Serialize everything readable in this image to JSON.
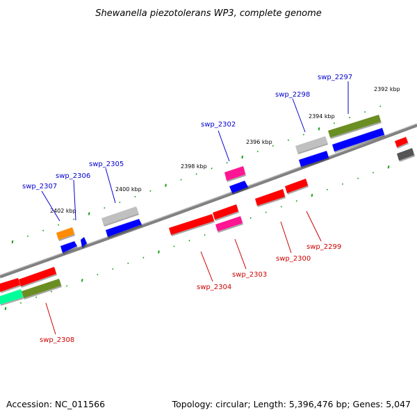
{
  "title": "Shewanella piezotolerans WP3, complete genome",
  "accession_text": "Accession: NC_011566",
  "summary_text": "Topology: circular; Length: 5,396,476 bp; Genes: 5,047",
  "kbp_labels": [
    "2392 kbp",
    "2394 kbp",
    "2396 kbp",
    "2398 kbp",
    "2400 kbp",
    "2402 kbp"
  ],
  "forward_genes": [
    "swp_2297",
    "swp_2298",
    "swp_2302",
    "swp_2305",
    "swp_2306",
    "swp_2307"
  ],
  "reverse_genes": [
    "swp_2299",
    "swp_2300",
    "swp_2303",
    "swp_2304",
    "swp_2308"
  ],
  "colors": {
    "forward_label": "#0000cc",
    "reverse_label": "#cc0000",
    "backbone": "#808080",
    "ticks": "#1a9e1a",
    "red": "#ff0000",
    "blue": "#0000ff",
    "olive": "#6b8e23",
    "silver": "#c0c0c0",
    "magenta": "#ff1493",
    "orange": "#ff8c00",
    "spring": "#00ff99",
    "dark_gray": "#555555"
  }
}
